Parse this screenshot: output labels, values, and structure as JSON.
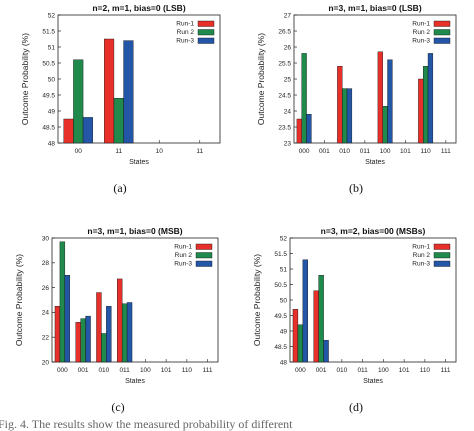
{
  "colors": {
    "Run-1": "#e8302b",
    "Run 2": "#1f8a4c",
    "Run-3": "#2456a8"
  },
  "chart_data": [
    {
      "type": "bar",
      "panel": "(a)",
      "title": "n=2, m=1, bias=0 (LSB)",
      "xlabel": "States",
      "ylabel": "Outcome Probability (%)",
      "categories": [
        "00",
        "11",
        "10",
        "11"
      ],
      "ylim": [
        48,
        52
      ],
      "yticks": [
        "48",
        "48.5",
        "49",
        "49.5",
        "50",
        "50.5",
        "51",
        "51.5",
        "52"
      ],
      "legend_position": "top-right",
      "series": [
        {
          "name": "Run-1",
          "values": [
            48.75,
            51.25,
            null,
            null
          ]
        },
        {
          "name": "Run 2",
          "values": [
            50.6,
            49.4,
            null,
            null
          ]
        },
        {
          "name": "Run-3",
          "values": [
            48.8,
            51.2,
            null,
            null
          ]
        }
      ]
    },
    {
      "type": "bar",
      "panel": "(b)",
      "title": "n=3, m=1, bias=0 (LSB)",
      "xlabel": "States",
      "ylabel": "Outcome Probability (%)",
      "categories": [
        "000",
        "001",
        "010",
        "011",
        "100",
        "101",
        "110",
        "111"
      ],
      "ylim": [
        23,
        27
      ],
      "yticks": [
        "23",
        "23.5",
        "24",
        "24.5",
        "25",
        "25.5",
        "26",
        "26.5",
        "27"
      ],
      "legend_position": "top-right",
      "series": [
        {
          "name": "Run-1",
          "values": [
            23.75,
            null,
            25.4,
            null,
            25.85,
            null,
            25.0,
            null
          ]
        },
        {
          "name": "Run 2",
          "values": [
            25.8,
            null,
            24.7,
            null,
            24.15,
            null,
            25.4,
            null
          ]
        },
        {
          "name": "Run-3",
          "values": [
            23.9,
            null,
            24.7,
            null,
            25.6,
            null,
            25.8,
            null
          ]
        }
      ]
    },
    {
      "type": "bar",
      "panel": "(c)",
      "title": "n=3, m=1, bias=0 (MSB)",
      "xlabel": "States",
      "ylabel": "Outcome Probability (%)",
      "categories": [
        "000",
        "001",
        "010",
        "011",
        "100",
        "101",
        "110",
        "111"
      ],
      "ylim": [
        20,
        30
      ],
      "yticks": [
        "20",
        "22",
        "24",
        "26",
        "28",
        "30"
      ],
      "legend_position": "top-right",
      "series": [
        {
          "name": "Run-1",
          "values": [
            24.5,
            23.2,
            25.6,
            26.7,
            null,
            null,
            null,
            null
          ]
        },
        {
          "name": "Run 2",
          "values": [
            29.7,
            23.5,
            22.3,
            24.7,
            null,
            null,
            null,
            null
          ]
        },
        {
          "name": "Run-3",
          "values": [
            27.0,
            23.7,
            24.5,
            24.8,
            null,
            null,
            null,
            null
          ]
        }
      ]
    },
    {
      "type": "bar",
      "panel": "(d)",
      "title": "n=3, m=2, bias=00 (MSBs)",
      "xlabel": "States",
      "ylabel": "Outcome Probability (%)",
      "categories": [
        "000",
        "001",
        "010",
        "011",
        "100",
        "101",
        "110",
        "111"
      ],
      "ylim": [
        48,
        52
      ],
      "yticks": [
        "48",
        "48.5",
        "49",
        "49.5",
        "50",
        "50.5",
        "51",
        "51.5",
        "52"
      ],
      "legend_position": "top-right",
      "series": [
        {
          "name": "Run-1",
          "values": [
            49.7,
            50.3,
            null,
            null,
            null,
            null,
            null,
            null
          ]
        },
        {
          "name": "Run 2",
          "values": [
            49.2,
            50.8,
            null,
            null,
            null,
            null,
            null,
            null
          ]
        },
        {
          "name": "Run-3",
          "values": [
            51.3,
            48.7,
            null,
            null,
            null,
            null,
            null,
            null
          ]
        }
      ]
    }
  ],
  "footer_fragment": "Fig. 4. The results show the measured probability of different"
}
